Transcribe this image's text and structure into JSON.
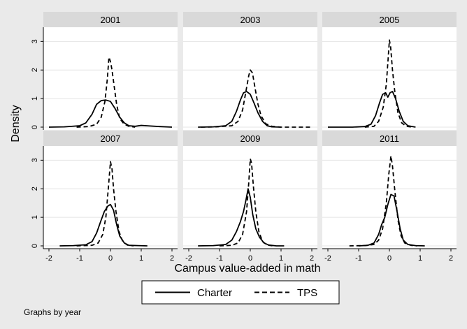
{
  "chart_data": {
    "type": "line",
    "ylabel": "Density",
    "xlabel": "Campus value-added in math",
    "xlim": [
      -2,
      2
    ],
    "ylim": [
      0,
      3.4
    ],
    "x_ticks": [
      -2,
      -1,
      0,
      1,
      2
    ],
    "x_tick_labels": [
      "-2",
      "-1",
      "0",
      "1",
      "2"
    ],
    "y_ticks": [
      0,
      1,
      2,
      3
    ],
    "y_tick_labels": [
      "0",
      "1",
      "2",
      "3"
    ],
    "grid": true,
    "legend_position": "bottom",
    "note": "Graphs by year",
    "series_styles": [
      {
        "name": "Charter",
        "dash": "solid",
        "color": "#000000"
      },
      {
        "name": "TPS",
        "dash": "dashed",
        "color": "#000000"
      }
    ],
    "panels": [
      {
        "title": "2001",
        "series": [
          {
            "name": "Charter",
            "points": [
              [
                -2.0,
                0.0
              ],
              [
                -1.5,
                0.01
              ],
              [
                -1.0,
                0.05
              ],
              [
                -0.8,
                0.15
              ],
              [
                -0.6,
                0.45
              ],
              [
                -0.45,
                0.8
              ],
              [
                -0.3,
                0.93
              ],
              [
                -0.15,
                0.95
              ],
              [
                0.0,
                0.9
              ],
              [
                0.15,
                0.65
              ],
              [
                0.3,
                0.35
              ],
              [
                0.45,
                0.15
              ],
              [
                0.6,
                0.05
              ],
              [
                0.8,
                0.03
              ],
              [
                1.0,
                0.06
              ],
              [
                1.3,
                0.04
              ],
              [
                1.6,
                0.02
              ],
              [
                2.0,
                0.0
              ]
            ]
          },
          {
            "name": "TPS",
            "points": [
              [
                -1.1,
                0.0
              ],
              [
                -0.7,
                0.02
              ],
              [
                -0.45,
                0.1
              ],
              [
                -0.3,
                0.35
              ],
              [
                -0.18,
                0.9
              ],
              [
                -0.1,
                1.7
              ],
              [
                -0.05,
                2.45
              ],
              [
                0.0,
                2.3
              ],
              [
                0.05,
                2.0
              ],
              [
                0.1,
                1.6
              ],
              [
                0.2,
                0.8
              ],
              [
                0.3,
                0.3
              ],
              [
                0.45,
                0.1
              ],
              [
                0.6,
                0.03
              ],
              [
                0.8,
                0.0
              ]
            ]
          }
        ]
      },
      {
        "title": "2003",
        "series": [
          {
            "name": "Charter",
            "points": [
              [
                -1.7,
                0.0
              ],
              [
                -1.2,
                0.01
              ],
              [
                -0.8,
                0.05
              ],
              [
                -0.6,
                0.2
              ],
              [
                -0.45,
                0.55
              ],
              [
                -0.32,
                0.95
              ],
              [
                -0.22,
                1.2
              ],
              [
                -0.12,
                1.25
              ],
              [
                0.0,
                1.15
              ],
              [
                0.12,
                0.85
              ],
              [
                0.25,
                0.5
              ],
              [
                0.4,
                0.2
              ],
              [
                0.55,
                0.05
              ],
              [
                0.7,
                0.01
              ],
              [
                1.0,
                0.0
              ]
            ]
          },
          {
            "name": "TPS",
            "points": [
              [
                -1.6,
                0.0
              ],
              [
                -1.1,
                0.01
              ],
              [
                -0.6,
                0.05
              ],
              [
                -0.4,
                0.2
              ],
              [
                -0.25,
                0.6
              ],
              [
                -0.15,
                1.2
              ],
              [
                -0.05,
                1.8
              ],
              [
                0.0,
                2.0
              ],
              [
                0.07,
                1.9
              ],
              [
                0.15,
                1.4
              ],
              [
                0.25,
                0.8
              ],
              [
                0.35,
                0.4
              ],
              [
                0.5,
                0.12
              ],
              [
                0.7,
                0.03
              ],
              [
                1.0,
                0.0
              ],
              [
                1.6,
                0.0
              ],
              [
                2.0,
                0.0
              ]
            ]
          }
        ]
      },
      {
        "title": "2005",
        "series": [
          {
            "name": "Charter",
            "points": [
              [
                -2.0,
                0.0
              ],
              [
                -1.2,
                0.0
              ],
              [
                -0.8,
                0.02
              ],
              [
                -0.6,
                0.1
              ],
              [
                -0.45,
                0.4
              ],
              [
                -0.32,
                0.85
              ],
              [
                -0.22,
                1.15
              ],
              [
                -0.12,
                1.2
              ],
              [
                -0.05,
                1.05
              ],
              [
                0.02,
                1.2
              ],
              [
                0.1,
                1.25
              ],
              [
                0.2,
                1.0
              ],
              [
                0.32,
                0.55
              ],
              [
                0.45,
                0.2
              ],
              [
                0.6,
                0.05
              ],
              [
                0.85,
                0.0
              ]
            ]
          },
          {
            "name": "TPS",
            "points": [
              [
                -0.8,
                0.0
              ],
              [
                -0.5,
                0.03
              ],
              [
                -0.35,
                0.2
              ],
              [
                -0.2,
                0.7
              ],
              [
                -0.1,
                1.5
              ],
              [
                -0.04,
                2.4
              ],
              [
                0.0,
                3.05
              ],
              [
                0.04,
                2.8
              ],
              [
                0.1,
                2.0
              ],
              [
                0.18,
                1.2
              ],
              [
                0.28,
                0.5
              ],
              [
                0.4,
                0.15
              ],
              [
                0.55,
                0.03
              ],
              [
                0.75,
                0.0
              ]
            ]
          }
        ]
      },
      {
        "title": "2007",
        "series": [
          {
            "name": "Charter",
            "points": [
              [
                -1.65,
                0.0
              ],
              [
                -1.2,
                0.01
              ],
              [
                -0.8,
                0.04
              ],
              [
                -0.6,
                0.15
              ],
              [
                -0.45,
                0.45
              ],
              [
                -0.32,
                0.85
              ],
              [
                -0.2,
                1.2
              ],
              [
                -0.08,
                1.4
              ],
              [
                0.0,
                1.45
              ],
              [
                0.1,
                1.25
              ],
              [
                0.2,
                0.75
              ],
              [
                0.3,
                0.35
              ],
              [
                0.45,
                0.1
              ],
              [
                0.6,
                0.02
              ],
              [
                0.9,
                0.01
              ],
              [
                1.2,
                0.0
              ]
            ]
          },
          {
            "name": "TPS",
            "points": [
              [
                -1.1,
                0.0
              ],
              [
                -0.6,
                0.02
              ],
              [
                -0.4,
                0.1
              ],
              [
                -0.25,
                0.4
              ],
              [
                -0.15,
                1.0
              ],
              [
                -0.07,
                2.0
              ],
              [
                0.0,
                2.95
              ],
              [
                0.05,
                2.7
              ],
              [
                0.1,
                2.0
              ],
              [
                0.18,
                1.2
              ],
              [
                0.28,
                0.5
              ],
              [
                0.4,
                0.15
              ],
              [
                0.55,
                0.03
              ],
              [
                0.75,
                0.0
              ]
            ]
          }
        ]
      },
      {
        "title": "2009",
        "series": [
          {
            "name": "Charter",
            "points": [
              [
                -1.7,
                0.0
              ],
              [
                -1.2,
                0.01
              ],
              [
                -0.8,
                0.05
              ],
              [
                -0.6,
                0.2
              ],
              [
                -0.45,
                0.5
              ],
              [
                -0.32,
                0.85
              ],
              [
                -0.22,
                1.2
              ],
              [
                -0.14,
                1.6
              ],
              [
                -0.07,
                2.0
              ],
              [
                0.0,
                1.7
              ],
              [
                0.08,
                1.1
              ],
              [
                0.18,
                0.6
              ],
              [
                0.3,
                0.3
              ],
              [
                0.45,
                0.1
              ],
              [
                0.6,
                0.03
              ],
              [
                0.85,
                0.0
              ],
              [
                1.1,
                0.0
              ]
            ]
          },
          {
            "name": "TPS",
            "points": [
              [
                -1.0,
                0.0
              ],
              [
                -0.6,
                0.02
              ],
              [
                -0.4,
                0.1
              ],
              [
                -0.25,
                0.4
              ],
              [
                -0.12,
                1.2
              ],
              [
                -0.05,
                2.2
              ],
              [
                0.0,
                3.05
              ],
              [
                0.04,
                2.9
              ],
              [
                0.1,
                2.1
              ],
              [
                0.18,
                1.2
              ],
              [
                0.28,
                0.5
              ],
              [
                0.4,
                0.15
              ],
              [
                0.55,
                0.03
              ],
              [
                0.75,
                0.0
              ]
            ]
          }
        ]
      },
      {
        "title": "2011",
        "series": [
          {
            "name": "Charter",
            "points": [
              [
                -1.0,
                0.0
              ],
              [
                -0.7,
                0.02
              ],
              [
                -0.5,
                0.1
              ],
              [
                -0.35,
                0.4
              ],
              [
                -0.25,
                0.75
              ],
              [
                -0.15,
                1.0
              ],
              [
                -0.05,
                1.45
              ],
              [
                0.05,
                1.8
              ],
              [
                0.15,
                1.75
              ],
              [
                0.25,
                1.2
              ],
              [
                0.35,
                0.6
              ],
              [
                0.45,
                0.2
              ],
              [
                0.6,
                0.05
              ],
              [
                0.85,
                0.01
              ],
              [
                1.15,
                0.0
              ]
            ]
          },
          {
            "name": "TPS",
            "points": [
              [
                -1.3,
                0.0
              ],
              [
                -0.8,
                0.01
              ],
              [
                -0.5,
                0.05
              ],
              [
                -0.35,
                0.2
              ],
              [
                -0.22,
                0.6
              ],
              [
                -0.1,
                1.5
              ],
              [
                -0.02,
                2.5
              ],
              [
                0.05,
                3.15
              ],
              [
                0.1,
                2.8
              ],
              [
                0.18,
                1.9
              ],
              [
                0.28,
                0.9
              ],
              [
                0.38,
                0.35
              ],
              [
                0.5,
                0.1
              ],
              [
                0.7,
                0.02
              ],
              [
                0.9,
                0.0
              ]
            ]
          }
        ]
      }
    ]
  }
}
